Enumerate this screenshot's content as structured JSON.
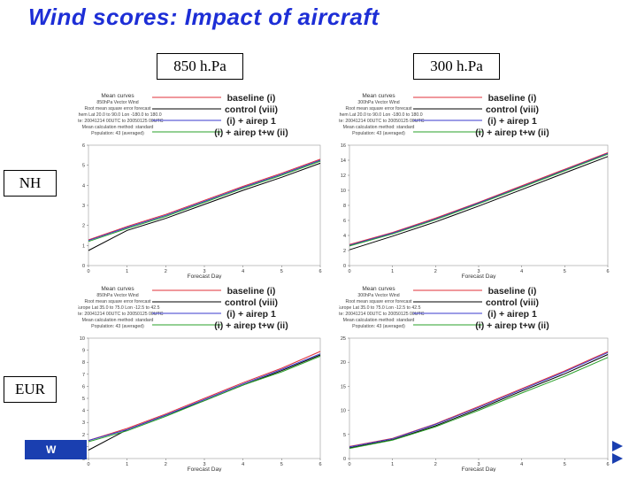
{
  "slide": {
    "title": "Wind scores:  Impact of aircraft",
    "col_headers": [
      "850 h.Pa",
      "300 h.Pa"
    ],
    "row_labels": [
      "NH",
      "EUR"
    ],
    "footer_fragment": "W"
  },
  "colors": {
    "title": "#1d2ed6",
    "baseline": "#e0303a",
    "control": "#000000",
    "airep1": "#3a3acc",
    "airep_tw": "#2aa02a"
  },
  "legend_entries": [
    "baseline (i)",
    "control (viii)",
    "(i) + airep 1",
    "(i) + airep t+w (ii)"
  ],
  "chart_data": [
    {
      "id": "nh-850",
      "type": "line",
      "title": "Mean curves",
      "info_lines": [
        "850hPa Vector Wind",
        "Root mean square error forecast",
        "N.hem Lat 20.0 to 90.0 Lon -180.0 to 180.0",
        "Date: 20041214 00UTC to 20050125 00UTC",
        "Mean calculation method: standard",
        "Population: 43 (averaged)"
      ],
      "xlabel": "Forecast Day",
      "x": [
        0,
        1,
        2,
        3,
        4,
        5,
        6
      ],
      "xlim": [
        0,
        6
      ],
      "ylim": [
        0,
        6
      ],
      "yticks": [
        0,
        1,
        2,
        3,
        4,
        5,
        6
      ],
      "series": [
        {
          "name": "baseline (i)",
          "values": [
            1.28,
            1.95,
            2.55,
            3.25,
            3.95,
            4.6,
            5.3
          ]
        },
        {
          "name": "control (viii)",
          "values": [
            0.75,
            1.75,
            2.35,
            3.05,
            3.75,
            4.4,
            5.1
          ]
        },
        {
          "name": "(i) + airep 1",
          "values": [
            1.25,
            1.9,
            2.5,
            3.2,
            3.9,
            4.55,
            5.25
          ]
        },
        {
          "name": "(i) + airep t+w (ii)",
          "values": [
            1.2,
            1.85,
            2.45,
            3.15,
            3.85,
            4.5,
            5.2
          ]
        }
      ]
    },
    {
      "id": "nh-300",
      "type": "line",
      "title": "Mean curves",
      "info_lines": [
        "300hPa Vector Wind",
        "Root mean square error forecast",
        "N.hem Lat 20.0 to 90.0 Lon -180.0 to 180.0",
        "Date: 20041214 00UTC to 20050125 00UTC",
        "Mean calculation method: standard",
        "Population: 43 (averaged)"
      ],
      "xlabel": "Forecast Day",
      "x": [
        0,
        1,
        2,
        3,
        4,
        5,
        6
      ],
      "xlim": [
        0,
        6
      ],
      "ylim": [
        0,
        16
      ],
      "yticks": [
        0,
        2,
        4,
        6,
        8,
        10,
        12,
        14,
        16
      ],
      "series": [
        {
          "name": "baseline (i)",
          "values": [
            2.8,
            4.4,
            6.3,
            8.4,
            10.6,
            12.8,
            15.0
          ]
        },
        {
          "name": "control (viii)",
          "values": [
            2.1,
            3.9,
            5.8,
            7.9,
            10.1,
            12.3,
            14.5
          ]
        },
        {
          "name": "(i) + airep 1",
          "values": [
            2.7,
            4.3,
            6.2,
            8.3,
            10.5,
            12.7,
            14.9
          ]
        },
        {
          "name": "(i) + airep t+w (ii)",
          "values": [
            2.6,
            4.2,
            6.1,
            8.2,
            10.4,
            12.6,
            14.8
          ]
        }
      ]
    },
    {
      "id": "eur-850",
      "type": "line",
      "title": "Mean curves",
      "info_lines": [
        "850hPa Vector Wind",
        "Root mean square error forecast",
        "Europe Lat 35.0 to 75.0 Lon -12.5 to 42.5",
        "Date: 20041214 00UTC to 20050125 00UTC",
        "Mean calculation method: standard",
        "Population: 43 (averaged)"
      ],
      "xlabel": "Forecast Day",
      "x": [
        0,
        1,
        2,
        3,
        4,
        5,
        6
      ],
      "xlim": [
        0,
        6
      ],
      "ylim": [
        0,
        10
      ],
      "yticks": [
        0,
        1,
        2,
        3,
        4,
        5,
        6,
        7,
        8,
        9,
        10
      ],
      "series": [
        {
          "name": "baseline (i)",
          "values": [
            1.5,
            2.5,
            3.7,
            5.0,
            6.3,
            7.5,
            8.9
          ]
        },
        {
          "name": "control (viii)",
          "values": [
            0.7,
            2.4,
            3.6,
            4.8,
            6.1,
            7.3,
            8.6
          ]
        },
        {
          "name": "(i) + airep 1",
          "values": [
            1.5,
            2.4,
            3.6,
            4.9,
            6.2,
            7.4,
            8.7
          ]
        },
        {
          "name": "(i) + airep t+w (ii)",
          "values": [
            1.4,
            2.3,
            3.5,
            4.8,
            6.1,
            7.2,
            8.5
          ]
        }
      ]
    },
    {
      "id": "eur-300",
      "type": "line",
      "title": "Mean curves",
      "info_lines": [
        "300hPa Vector Wind",
        "Root mean square error forecast",
        "Europe Lat 35.0 to 75.0 Lon -12.5 to 42.5",
        "Date: 20041214 00UTC to 20050125 00UTC",
        "Mean calculation method: standard",
        "Population: 43 (averaged)"
      ],
      "xlabel": "Forecast Day",
      "x": [
        0,
        1,
        2,
        3,
        4,
        5,
        6
      ],
      "xlim": [
        0,
        6
      ],
      "ylim": [
        0,
        25
      ],
      "yticks": [
        0,
        5,
        10,
        15,
        20,
        25
      ],
      "series": [
        {
          "name": "baseline (i)",
          "values": [
            2.5,
            4.2,
            7.2,
            10.8,
            14.5,
            18.2,
            22.2
          ]
        },
        {
          "name": "control (viii)",
          "values": [
            2.2,
            3.9,
            6.8,
            10.3,
            14.0,
            17.6,
            21.6
          ]
        },
        {
          "name": "(i) + airep 1",
          "values": [
            2.4,
            4.1,
            7.1,
            10.6,
            14.3,
            18.0,
            22.0
          ]
        },
        {
          "name": "(i) + airep t+w (ii)",
          "values": [
            2.1,
            3.8,
            6.6,
            10.0,
            13.6,
            17.1,
            21.0
          ]
        }
      ]
    }
  ]
}
